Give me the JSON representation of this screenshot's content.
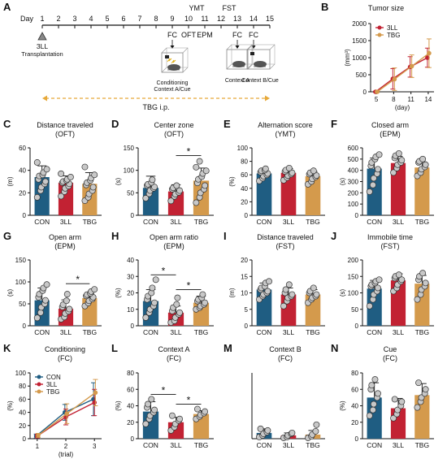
{
  "colors": {
    "con": "#1f5d82",
    "ll": "#c22233",
    "tbg": "#d49a4c",
    "dot": "#c8c8c8",
    "tbg_arrow": "#e7a93a"
  },
  "timeline": {
    "panel_letter": "A",
    "day_label": "Day",
    "days": [
      1,
      2,
      3,
      4,
      5,
      6,
      7,
      8,
      9,
      10,
      11,
      12,
      13,
      14,
      15
    ],
    "transplant_label_1": "3LL",
    "transplant_label_2": "Transplantation",
    "tests_top": [
      {
        "day": 10,
        "label": "YMT"
      },
      {
        "day": 12,
        "label": "FST"
      }
    ],
    "tests_bottom": [
      {
        "day": 9,
        "label": "FC"
      },
      {
        "day": 10,
        "label": "OFT"
      },
      {
        "day": 11,
        "label": "EPM"
      },
      {
        "day": 13,
        "label": "FC"
      },
      {
        "day": 14,
        "label": "FC"
      }
    ],
    "context_labels": [
      "Conditioning",
      "Context A/Cue",
      "Context A",
      "Context B/Cue"
    ],
    "treatment_label": "TBG i.p."
  },
  "chart_data": [
    {
      "id": "B",
      "type": "line",
      "title": "Tumor size",
      "xlabel": "(day)",
      "ylabel": "(mm³)",
      "x": [
        5,
        8,
        11,
        14
      ],
      "xlim": [
        4,
        15
      ],
      "ylim": [
        0,
        2000
      ],
      "yticks": [
        0,
        500,
        1000,
        1500,
        2000
      ],
      "series": [
        {
          "name": "3LL",
          "values": [
            0,
            380,
            730,
            1000
          ],
          "err": [
            20,
            300,
            300,
            280
          ]
        },
        {
          "name": "TBG",
          "values": [
            0,
            370,
            750,
            1130
          ],
          "err": [
            20,
            330,
            330,
            420
          ]
        }
      ],
      "legend": "top-left"
    },
    {
      "id": "C",
      "type": "bar",
      "title": "Distance traveled",
      "subtitle": "(OFT)",
      "ylabel": "(m)",
      "categories": [
        "CON",
        "3LL",
        "TBG"
      ],
      "values": [
        34,
        29,
        28
      ],
      "err": [
        10,
        6,
        10
      ],
      "ylim": [
        0,
        60
      ],
      "yticks": [
        0,
        20,
        40,
        60
      ],
      "points": [
        [
          16,
          22,
          25,
          28,
          30,
          32,
          35,
          36,
          38,
          41,
          47
        ],
        [
          17,
          21,
          24,
          26,
          28,
          29,
          30,
          31,
          32,
          34,
          37
        ],
        [
          13,
          16,
          19,
          22,
          25,
          27,
          29,
          31,
          33,
          36,
          43
        ]
      ],
      "significance": []
    },
    {
      "id": "D",
      "type": "bar",
      "title": "Center zone",
      "subtitle": "(OFT)",
      "ylabel": "(s)",
      "categories": [
        "CON",
        "3LL",
        "TBG"
      ],
      "values": [
        61,
        53,
        77
      ],
      "err": [
        26,
        15,
        28
      ],
      "ylim": [
        0,
        150
      ],
      "yticks": [
        0,
        50,
        100,
        150
      ],
      "points": [
        [
          38,
          48,
          55,
          60,
          63,
          66,
          69,
          73,
          79
        ],
        [
          32,
          42,
          47,
          51,
          55,
          58,
          61,
          66
        ],
        [
          28,
          40,
          50,
          58,
          66,
          72,
          80,
          86,
          93,
          99,
          107,
          120
        ]
      ],
      "significance": [
        {
          "from": 1,
          "to": 2,
          "label": "*"
        }
      ]
    },
    {
      "id": "E",
      "type": "bar",
      "title": "Alternation score",
      "subtitle": "(YMT)",
      "ylabel": "(%)",
      "categories": [
        "CON",
        "3LL",
        "TBG"
      ],
      "values": [
        62,
        63,
        58
      ],
      "err": [
        6,
        6,
        7
      ],
      "ylim": [
        0,
        100
      ],
      "yticks": [
        0,
        20,
        40,
        60,
        80,
        100
      ],
      "points": [
        [
          51,
          55,
          58,
          60,
          62,
          64,
          66,
          67,
          69
        ],
        [
          52,
          56,
          59,
          61,
          63,
          65,
          67,
          70
        ],
        [
          46,
          50,
          54,
          57,
          59,
          61,
          63,
          66
        ]
      ],
      "significance": []
    },
    {
      "id": "F",
      "type": "bar",
      "title": "Closed arm",
      "subtitle": "(EPM)",
      "ylabel": "(s)",
      "categories": [
        "CON",
        "3LL",
        "TBG"
      ],
      "values": [
        415,
        465,
        425
      ],
      "err": [
        95,
        60,
        50
      ],
      "ylim": [
        0,
        600
      ],
      "yticks": [
        0,
        100,
        200,
        300,
        400,
        500,
        600
      ],
      "points": [
        [
          210,
          270,
          330,
          370,
          410,
          440,
          470,
          500,
          520,
          540
        ],
        [
          380,
          420,
          450,
          470,
          490,
          510,
          530,
          550
        ],
        [
          350,
          380,
          410,
          430,
          450,
          470,
          480,
          500
        ]
      ],
      "significance": []
    },
    {
      "id": "G",
      "type": "bar",
      "title": "Open arm",
      "subtitle": "(EPM)",
      "ylabel": "(s)",
      "categories": [
        "CON",
        "3LL",
        "TBG"
      ],
      "values": [
        58,
        39,
        63
      ],
      "err": [
        28,
        20,
        10
      ],
      "ylim": [
        0,
        150
      ],
      "yticks": [
        0,
        50,
        100,
        150
      ],
      "points": [
        [
          18,
          30,
          42,
          50,
          58,
          65,
          72,
          80,
          86,
          94
        ],
        [
          15,
          20,
          28,
          33,
          38,
          43,
          48,
          57,
          72
        ],
        [
          45,
          52,
          57,
          61,
          65,
          68,
          71,
          74,
          78,
          83
        ]
      ],
      "significance": [
        {
          "from": 1,
          "to": 2,
          "label": "*"
        }
      ]
    },
    {
      "id": "H",
      "type": "bar",
      "title": "Open arm ratio",
      "subtitle": "(EPM)",
      "ylabel": "(%)",
      "categories": [
        "CON",
        "3LL",
        "TBG"
      ],
      "values": [
        15,
        8,
        14
      ],
      "err": [
        7,
        4,
        4
      ],
      "ylim": [
        0,
        40
      ],
      "yticks": [
        0,
        10,
        20,
        30,
        40
      ],
      "points": [
        [
          5,
          8,
          10,
          12,
          14,
          16,
          18,
          20,
          23,
          28
        ],
        [
          2,
          3,
          5,
          7,
          8,
          9,
          11,
          13,
          17
        ],
        [
          10,
          11,
          12,
          13,
          14,
          15,
          16,
          17,
          19
        ]
      ],
      "significance": [
        {
          "from": 0,
          "to": 1,
          "label": "*"
        },
        {
          "from": 1,
          "to": 2,
          "label": "*"
        }
      ]
    },
    {
      "id": "I",
      "type": "bar",
      "title": "Distance traveled",
      "subtitle": "(FST)",
      "ylabel": "(m)",
      "categories": [
        "CON",
        "3LL",
        "TBG"
      ],
      "values": [
        11,
        9.5,
        9.5
      ],
      "err": [
        2,
        2,
        1.5
      ],
      "ylim": [
        0,
        20
      ],
      "yticks": [
        0,
        5,
        10,
        15,
        20
      ],
      "points": [
        [
          8,
          9,
          9.5,
          10,
          10.5,
          11,
          11.5,
          12,
          13,
          13.5
        ],
        [
          6,
          7.5,
          8.5,
          9,
          9.5,
          10,
          11,
          12.5
        ],
        [
          7,
          8,
          8.5,
          9,
          9.5,
          10,
          10.5,
          11.5
        ]
      ],
      "significance": []
    },
    {
      "id": "J",
      "type": "bar",
      "title": "Immobile time",
      "subtitle": "(FST)",
      "ylabel": "(s)",
      "categories": [
        "CON",
        "3LL",
        "TBG"
      ],
      "values": [
        113,
        138,
        128
      ],
      "err": [
        25,
        20,
        25
      ],
      "ylim": [
        0,
        200
      ],
      "yticks": [
        0,
        50,
        100,
        150,
        200
      ],
      "points": [
        [
          60,
          80,
          95,
          105,
          115,
          120,
          125,
          130,
          135,
          140
        ],
        [
          105,
          115,
          125,
          135,
          140,
          145,
          150,
          155
        ],
        [
          80,
          95,
          110,
          120,
          130,
          140,
          150,
          160
        ]
      ],
      "significance": []
    },
    {
      "id": "K",
      "type": "line",
      "title": "Conditioning",
      "subtitle": "(FC)",
      "xlabel": "(trial)",
      "ylabel": "(%)",
      "x": [
        1,
        2,
        3
      ],
      "xlim": [
        0.75,
        3.25
      ],
      "ylim": [
        0,
        100
      ],
      "yticks": [
        0,
        20,
        40,
        60,
        80,
        100
      ],
      "series": [
        {
          "name": "CON",
          "values": [
            4,
            40,
            60
          ],
          "err": [
            3,
            12,
            25
          ]
        },
        {
          "name": "3LL",
          "values": [
            4,
            33,
            55
          ],
          "err": [
            3,
            12,
            20
          ]
        },
        {
          "name": "TBG",
          "values": [
            5,
            38,
            70
          ],
          "err": [
            3,
            15,
            20
          ]
        }
      ],
      "legend": "top-left"
    },
    {
      "id": "L",
      "type": "bar",
      "title": "Context A",
      "subtitle": "(FC)",
      "ylabel": "(%)",
      "categories": [
        "CON",
        "3LL",
        "TBG"
      ],
      "values": [
        33,
        20,
        30
      ],
      "err": [
        12,
        6,
        4
      ],
      "ylim": [
        0,
        80
      ],
      "yticks": [
        0,
        20,
        40,
        60,
        80
      ],
      "points": [
        [
          18,
          24,
          28,
          32,
          35,
          38,
          42,
          48
        ],
        [
          10,
          14,
          18,
          22,
          24,
          28
        ],
        [
          24,
          27,
          29,
          31,
          33,
          36
        ]
      ],
      "significance": [
        {
          "from": 0,
          "to": 1,
          "label": "*"
        },
        {
          "from": 1,
          "to": 2,
          "label": "*"
        }
      ]
    },
    {
      "id": "M",
      "type": "bar",
      "title": "Context B",
      "subtitle": "(FC)",
      "ylabel": "",
      "categories": [
        "CON",
        "3LL",
        "TBG"
      ],
      "values": [
        7,
        4,
        5
      ],
      "err": [
        5,
        3,
        5
      ],
      "ylim": [
        0,
        80
      ],
      "yticks": [],
      "points": [
        [
          2,
          4,
          6,
          8,
          10,
          12
        ],
        [
          1,
          2,
          4,
          6,
          7
        ],
        [
          1,
          3,
          5,
          9,
          17
        ]
      ],
      "significance": []
    },
    {
      "id": "N",
      "type": "bar",
      "title": "Cue",
      "subtitle": "(FC)",
      "ylabel": "(%)",
      "categories": [
        "CON",
        "3LL",
        "TBG"
      ],
      "values": [
        50,
        37,
        53
      ],
      "err": [
        18,
        12,
        14
      ],
      "ylim": [
        0,
        80
      ],
      "yticks": [
        0,
        20,
        40,
        60,
        80
      ],
      "points": [
        [
          28,
          35,
          42,
          50,
          55,
          60,
          65,
          72
        ],
        [
          25,
          30,
          35,
          40,
          45,
          48
        ],
        [
          38,
          45,
          50,
          55,
          60,
          68
        ]
      ],
      "significance": []
    }
  ]
}
